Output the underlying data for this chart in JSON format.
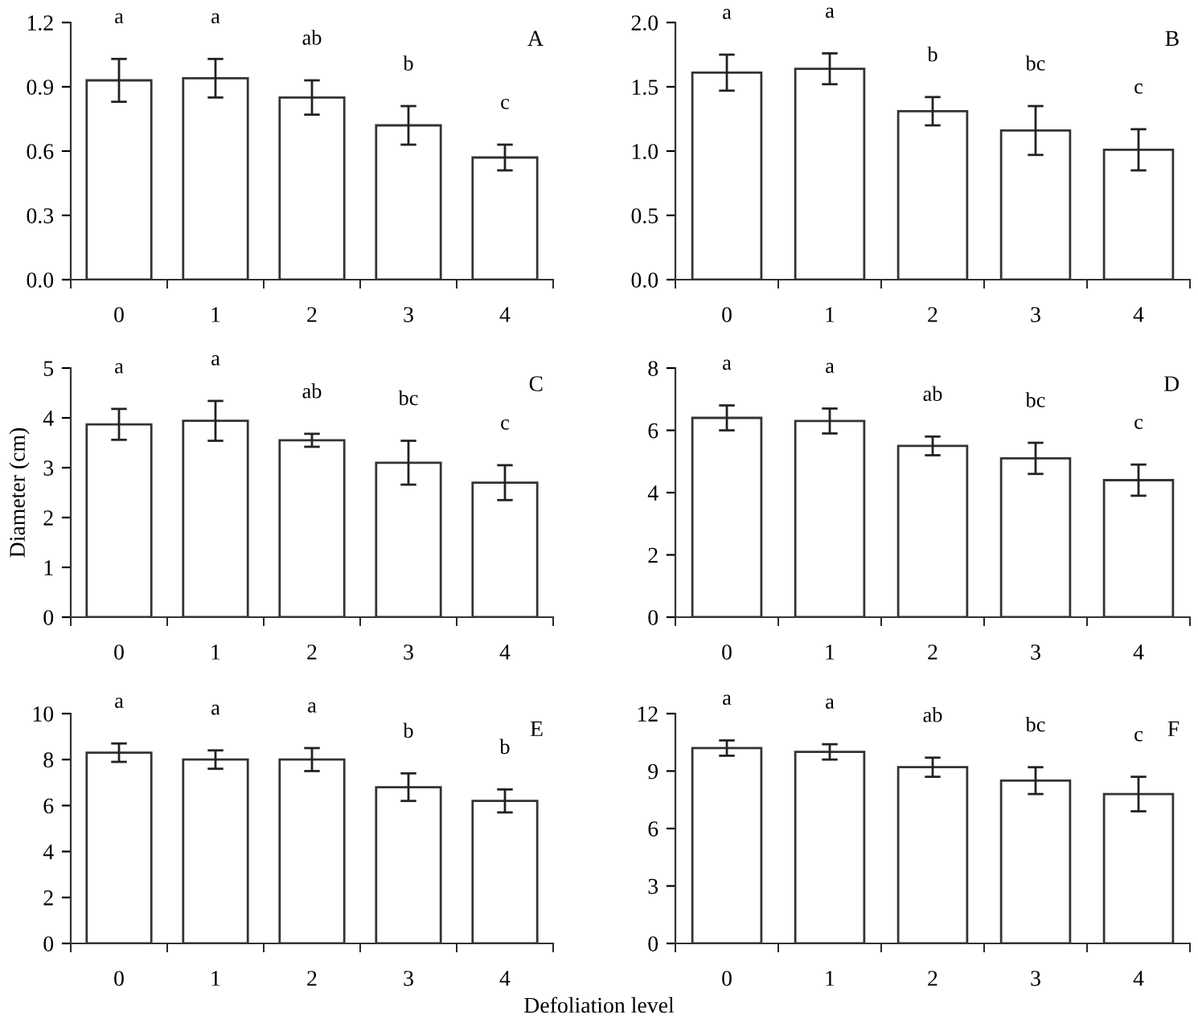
{
  "chart_data": [
    {
      "type": "bar",
      "title": "A",
      "categories": [
        "0",
        "1",
        "2",
        "3",
        "4"
      ],
      "series": [
        {
          "color": "#ffffff",
          "values": [
            0.93,
            0.94,
            0.85,
            0.72,
            0.57
          ],
          "errors": [
            0.1,
            0.09,
            0.08,
            0.09,
            0.06
          ]
        }
      ],
      "ylim": [
        0,
        1.2
      ],
      "yticks": [
        {
          "value": 0,
          "label": "0.0"
        },
        0.3,
        0.6,
        0.9,
        1.2
      ],
      "annotations": [
        "a",
        "a",
        "ab",
        "b",
        "c"
      ]
    },
    {
      "type": "bar",
      "title": "B",
      "categories": [
        "0",
        "1",
        "2",
        "3",
        "4"
      ],
      "series": [
        {
          "color": "#ffffff",
          "values": [
            1.61,
            1.64,
            1.31,
            1.16,
            1.01
          ],
          "errors": [
            0.14,
            0.12,
            0.11,
            0.19,
            0.16
          ]
        }
      ],
      "ylim": [
        0,
        2.0
      ],
      "yticks": [
        {
          "value": 0,
          "label": "0.0"
        },
        0.5,
        {
          "value": 1,
          "label": "1.0"
        },
        1.5,
        {
          "value": 2,
          "label": "2.0"
        }
      ],
      "annotations": [
        "a",
        "a",
        "b",
        "bc",
        "c"
      ]
    },
    {
      "type": "bar",
      "title": "C",
      "ylabel": "Diameter (cm)",
      "categories": [
        "0",
        "1",
        "2",
        "3",
        "4"
      ],
      "series": [
        {
          "color": "#ffffff",
          "values": [
            3.87,
            3.94,
            3.55,
            3.1,
            2.7
          ],
          "errors": [
            0.31,
            0.4,
            0.13,
            0.44,
            0.35
          ]
        }
      ],
      "ylim": [
        0,
        5
      ],
      "yticks": [
        0,
        1,
        2,
        3,
        4,
        5
      ],
      "annotations": [
        "a",
        "a",
        "ab",
        "bc",
        "c"
      ]
    },
    {
      "type": "bar",
      "title": "D",
      "categories": [
        "0",
        "1",
        "2",
        "3",
        "4"
      ],
      "series": [
        {
          "color": "#ffffff",
          "values": [
            6.4,
            6.3,
            5.5,
            5.1,
            4.4
          ],
          "errors": [
            0.4,
            0.4,
            0.3,
            0.5,
            0.5
          ]
        }
      ],
      "ylim": [
        0,
        8
      ],
      "yticks": [
        0,
        2,
        4,
        6,
        8
      ],
      "annotations": [
        "a",
        "a",
        "ab",
        "bc",
        "c"
      ]
    },
    {
      "type": "bar",
      "title": "E",
      "xlabel": "Defoliation level",
      "categories": [
        "0",
        "1",
        "2",
        "3",
        "4"
      ],
      "series": [
        {
          "color": "#ffffff",
          "values": [
            8.3,
            8.0,
            8.0,
            6.8,
            6.2
          ],
          "errors": [
            0.4,
            0.4,
            0.5,
            0.6,
            0.5
          ]
        }
      ],
      "ylim": [
        0,
        10
      ],
      "yticks": [
        0,
        2,
        4,
        6,
        8,
        10
      ],
      "annotations": [
        "a",
        "a",
        "a",
        "b",
        "b"
      ]
    },
    {
      "type": "bar",
      "title": "F",
      "categories": [
        "0",
        "1",
        "2",
        "3",
        "4"
      ],
      "series": [
        {
          "color": "#ffffff",
          "values": [
            10.2,
            10.0,
            9.2,
            8.5,
            7.8
          ],
          "errors": [
            0.4,
            0.4,
            0.5,
            0.7,
            0.9
          ]
        }
      ],
      "ylim": [
        0,
        12
      ],
      "yticks": [
        0,
        3,
        6,
        9,
        12
      ],
      "annotations": [
        "a",
        "a",
        "ab",
        "bc",
        "c"
      ]
    }
  ]
}
